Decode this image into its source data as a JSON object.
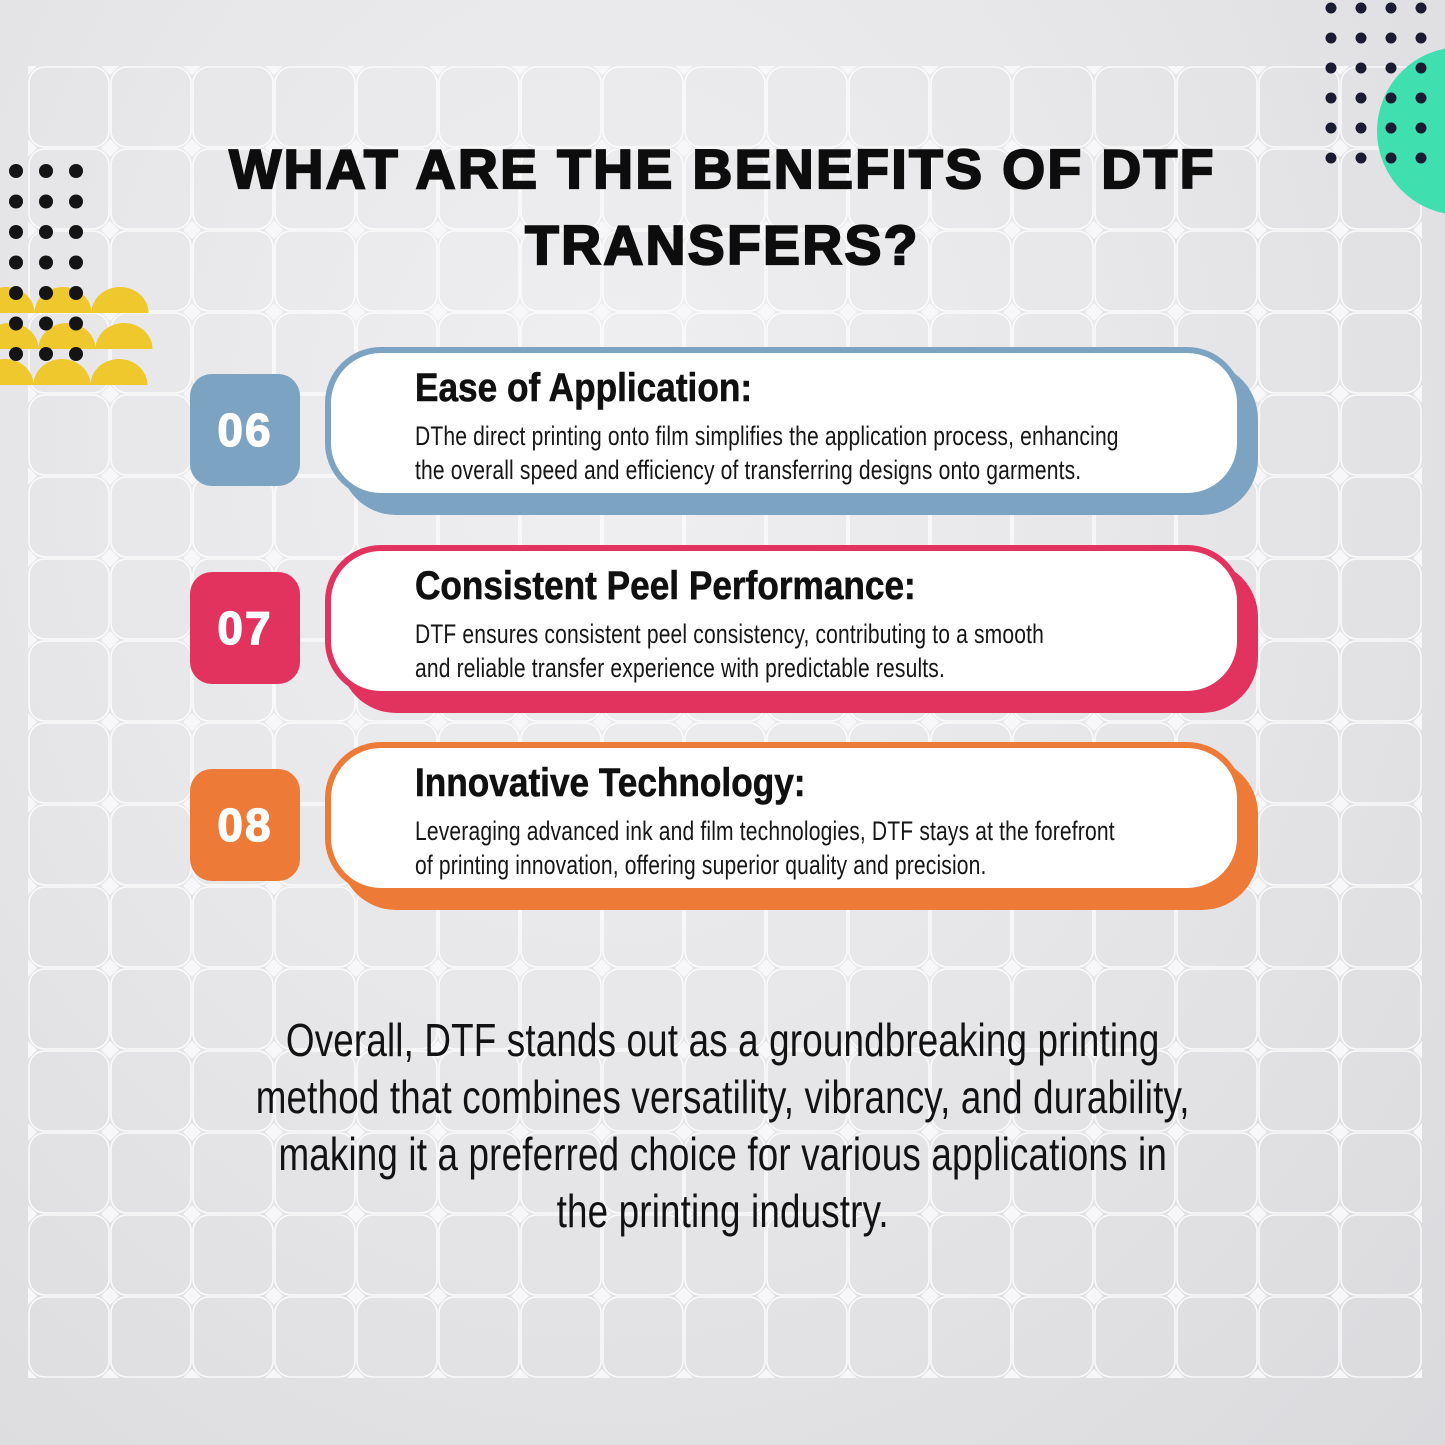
{
  "header": {
    "title": "WHAT ARE THE BENEFITS OF DTF\nTRANSFERS?"
  },
  "cards": [
    {
      "number": "06",
      "accent": "#7ca3c2",
      "title": "Ease of Application:",
      "body": "DThe direct printing onto film simplifies the application process, enhancing\nthe overall speed and efficiency of transferring designs onto garments."
    },
    {
      "number": "07",
      "accent": "#e2335f",
      "title": "Consistent Peel Performance:",
      "body": "DTF ensures consistent peel consistency, contributing to a smooth\nand reliable transfer experience with predictable results."
    },
    {
      "number": "08",
      "accent": "#ed7a37",
      "title": "Innovative Technology:",
      "body": "Leveraging advanced ink and film technologies, DTF stays at the forefront\nof printing innovation, offering superior quality and precision."
    }
  ],
  "footer": {
    "text": "Overall, DTF stands out as a groundbreaking printing\nmethod that combines versatility, vibrancy, and durability,\nmaking it a preferred choice for various applications in\nthe printing industry."
  },
  "colors": {
    "text": "#0e0e0e",
    "teal": "#3fdfb0",
    "yellow": "#eec82c",
    "dots-navy": "#1b1b32",
    "dots-black": "#141414",
    "grid-line": "#ffffff",
    "grid-diamond": "#f7f7f9"
  }
}
